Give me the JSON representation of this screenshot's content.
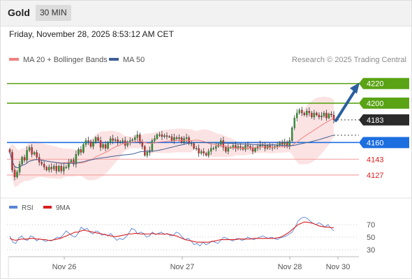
{
  "header": {
    "symbol": "Gold",
    "interval": "30 MIN",
    "datetime": "Friday, November 28, 2025 8:53:12 AM CET"
  },
  "legend": {
    "ma20": "MA 20 + Bollinger Bands",
    "ma50": "MA 50",
    "credit": "Research © 2025 Trading Central"
  },
  "rsi_legend": {
    "rsi": "RSI",
    "ma": "9MA"
  },
  "colors": {
    "up": "#2a9d2a",
    "down": "#d32f2f",
    "ma20": "#f08080",
    "ma50": "#3e5f94",
    "bollinger": "#fbdede",
    "target_green": "#5aa315",
    "current_dark": "#2b2b2b",
    "pivot_blue": "#1d6fe0",
    "support_red": "#e02020",
    "arrow": "#2b5ea0",
    "rsi": "#5b84d6",
    "rsi_ma": "#d81f1f"
  },
  "chart_data": [
    {
      "type": "candlestick",
      "x_labels": [
        "Nov 26",
        "Nov 27",
        "Nov 28",
        "Nov 30"
      ],
      "ylim": [
        4112,
        4234
      ],
      "levels": [
        {
          "value": 4220,
          "label": "4220",
          "kind": "resistance"
        },
        {
          "value": 4200,
          "label": "4200",
          "kind": "resistance"
        },
        {
          "value": 4183,
          "label": "4183",
          "kind": "current"
        },
        {
          "value": 4160,
          "label": "4160",
          "kind": "pivot"
        },
        {
          "value": 4143,
          "label": "4143",
          "kind": "support"
        },
        {
          "value": 4127,
          "label": "4127",
          "kind": "support"
        }
      ],
      "close": [
        4150,
        4132,
        4125,
        4130,
        4138,
        4145,
        4142,
        4152,
        4155,
        4148,
        4150,
        4145,
        4140,
        4138,
        4135,
        4132,
        4135,
        4133,
        4136,
        4131,
        4136,
        4131,
        4135,
        4135,
        4140,
        4142,
        4138,
        4148,
        4153,
        4150,
        4158,
        4162,
        4161,
        4156,
        4160,
        4165,
        4162,
        4155,
        4158,
        4154,
        4160,
        4164,
        4162,
        4163,
        4160,
        4161,
        4162,
        4157,
        4160,
        4162,
        4163,
        4165,
        4168,
        4160,
        4156,
        4147,
        4150,
        4152,
        4162,
        4164,
        4168,
        4168,
        4166,
        4167,
        4166,
        4166,
        4162,
        4165,
        4164,
        4165,
        4160,
        4164,
        4165,
        4159,
        4159,
        4154,
        4154,
        4149,
        4151,
        4149,
        4147,
        4151,
        4154,
        4154,
        4156,
        4158,
        4162,
        4155,
        4151,
        4155,
        4155,
        4157,
        4154,
        4156,
        4155,
        4153,
        4157,
        4156,
        4154,
        4151,
        4154,
        4156,
        4158,
        4157,
        4154,
        4157,
        4155,
        4155,
        4156,
        4157,
        4160,
        4158,
        4160,
        4156,
        4162,
        4175,
        4185,
        4190,
        4193,
        4190,
        4188,
        4192,
        4190,
        4186,
        4190,
        4188,
        4186,
        4187,
        4190,
        4185,
        4189,
        4188,
        4183
      ]
    },
    {
      "type": "line",
      "title": "RSI",
      "x_labels": [
        "Nov 26",
        "Nov 27",
        "Nov 28",
        "Nov 30"
      ],
      "ylim": [
        20,
        80
      ],
      "y_ticks": [
        70,
        50,
        30
      ],
      "series": [
        {
          "name": "RSI",
          "values": [
            52,
            42,
            40,
            48,
            52,
            46,
            45,
            52,
            50,
            44,
            47,
            46,
            43,
            45,
            44,
            47,
            50,
            49,
            54,
            60,
            56,
            52,
            50,
            56,
            66,
            62,
            64,
            58,
            55,
            60,
            58,
            53,
            55,
            52,
            56,
            50,
            45,
            48,
            46,
            50,
            56,
            64,
            62,
            55,
            58,
            56,
            50,
            52,
            58,
            54,
            56,
            58,
            54,
            56,
            52,
            53,
            58,
            56,
            50,
            46,
            48,
            44,
            38,
            40,
            36,
            42,
            38,
            40,
            44,
            42,
            40,
            45,
            50,
            48,
            46,
            44,
            47,
            48,
            45,
            46,
            50,
            48,
            46,
            48,
            50,
            52,
            50,
            48,
            50,
            48,
            46,
            49,
            50,
            52,
            55,
            58,
            66,
            76,
            80,
            82,
            80,
            76,
            72,
            70,
            73,
            70,
            66,
            70,
            65,
            60
          ]
        },
        {
          "name": "9MA",
          "values": [
            48,
            46,
            45,
            46,
            47,
            47,
            47,
            48,
            48,
            47,
            47,
            46,
            46,
            45,
            45,
            46,
            47,
            48,
            50,
            52,
            54,
            56,
            58,
            58,
            60,
            61,
            60,
            59,
            58,
            57,
            56,
            55,
            54,
            53,
            52,
            51,
            51,
            52,
            53,
            54,
            55,
            55,
            56,
            56,
            55,
            55,
            55,
            55,
            56,
            55,
            55,
            55,
            55,
            55,
            54,
            53,
            52,
            50,
            48,
            46,
            45,
            44,
            43,
            42,
            42,
            42,
            42,
            42,
            43,
            44,
            45,
            46,
            46,
            46,
            46,
            46,
            46,
            47,
            47,
            47,
            47,
            47,
            48,
            48,
            48,
            48,
            48,
            48,
            48,
            48,
            49,
            50,
            52,
            55,
            58,
            62,
            66,
            70,
            72,
            74,
            74,
            73,
            72,
            70,
            68,
            67,
            66,
            66,
            65,
            65
          ]
        }
      ]
    }
  ]
}
